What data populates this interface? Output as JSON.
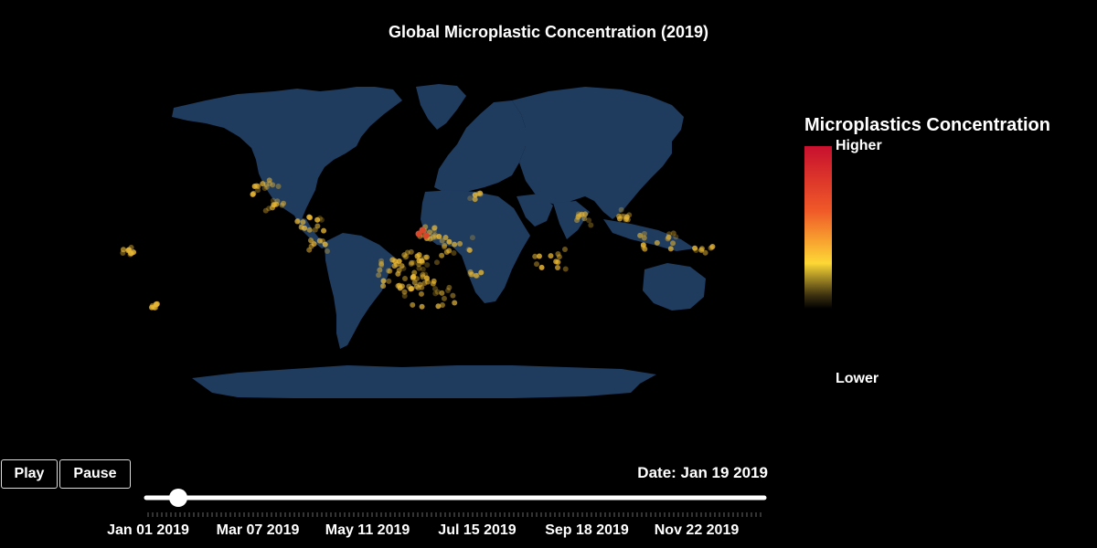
{
  "title": "Global Microplastic Concentration (2019)",
  "legend": {
    "title": "Microplastics Concentration",
    "high_label": "Higher",
    "low_label": "Lower",
    "colors": [
      "#c8102e",
      "#f05a28",
      "#fdd835",
      "#3a2f10",
      "#000000"
    ]
  },
  "controls": {
    "play_label": "Play",
    "pause_label": "Pause",
    "current_date": "Date: Jan 19 2019",
    "slider": {
      "start": "2019-01-01",
      "end": "2019-12-31",
      "value": "2019-01-19"
    },
    "tick_labels": [
      "Jan 01 2019",
      "Mar 07 2019",
      "May 11 2019",
      "Jul 15 2019",
      "Sep 18 2019",
      "Nov 22 2019"
    ]
  },
  "colors": {
    "land": "#1f3b5e",
    "background": "#000000",
    "hot": "#d9472b",
    "warm": "#e9b836"
  }
}
